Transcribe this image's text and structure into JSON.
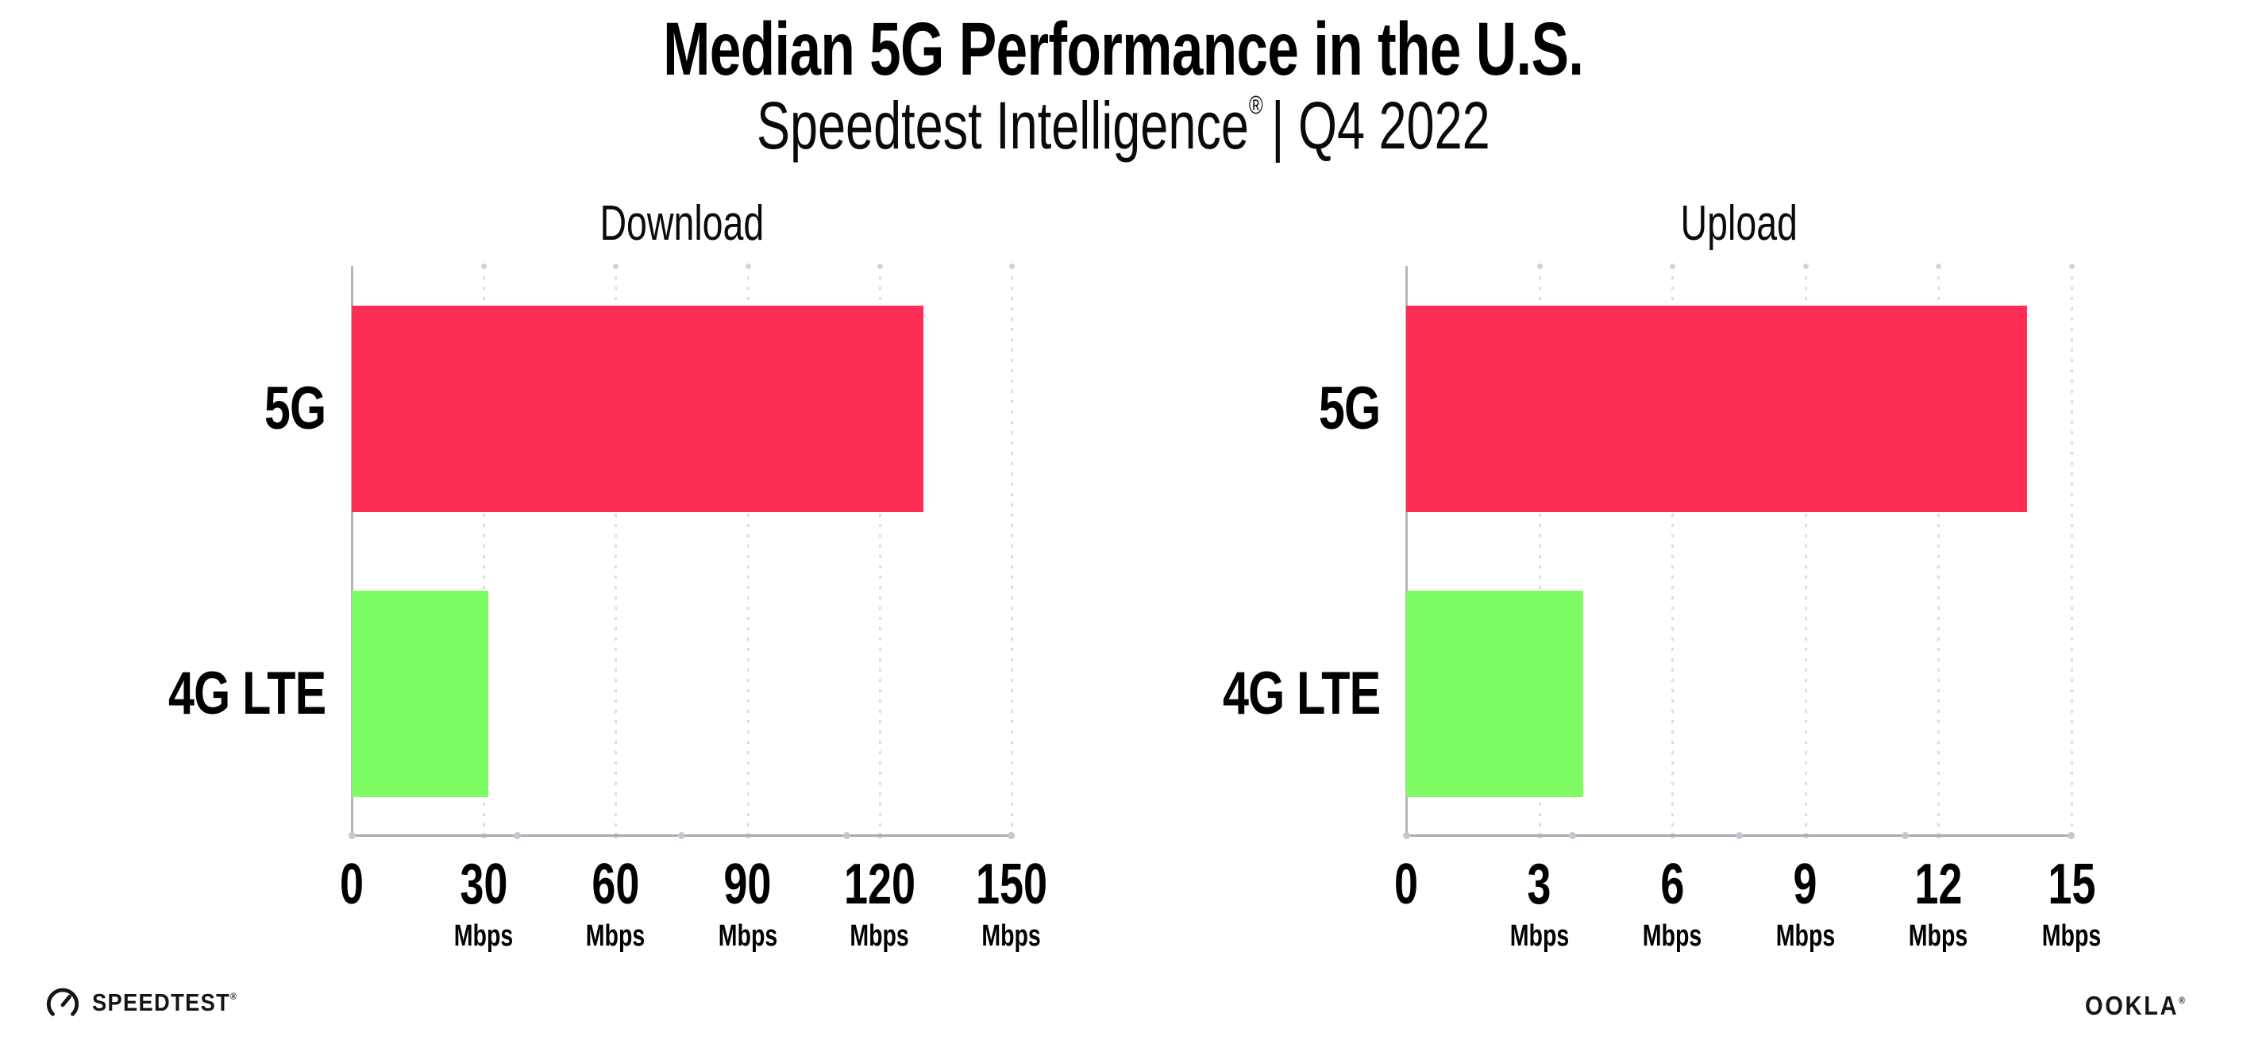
{
  "header": {
    "title": "Median 5G Performance in the U.S.",
    "subtitle_brand": "Speedtest Intelligence",
    "subtitle_reg": "®",
    "subtitle_rest": "| Q4 2022"
  },
  "footer": {
    "speedtest_label": "SPEEDTEST",
    "speedtest_reg": "®",
    "ookla_label": "OOKLA",
    "ookla_reg": "®"
  },
  "colors": {
    "bar_5g": "#FE2D55",
    "bar_4g_lte": "#7EFC63",
    "axis_line": "#A9A9B0",
    "gridline_dotted": "#DDDDE8",
    "text": "#000000",
    "background": "#FFFFFF"
  },
  "chart_data": [
    {
      "type": "bar",
      "orientation": "horizontal",
      "title": "Download",
      "categories": [
        "5G",
        "4G LTE"
      ],
      "values": [
        130,
        31
      ],
      "unit": "Mbps",
      "colors": [
        "#FE2D55",
        "#7EFC63"
      ],
      "xlim": [
        0,
        150
      ],
      "ticks": [
        "0",
        "30",
        "60",
        "90",
        "120",
        "150"
      ],
      "tick_units": [
        "",
        "Mbps",
        "Mbps",
        "Mbps",
        "Mbps",
        "Mbps"
      ],
      "grid": "vertical-dotted",
      "legend": "none"
    },
    {
      "type": "bar",
      "orientation": "horizontal",
      "title": "Upload",
      "categories": [
        "5G",
        "4G LTE"
      ],
      "values": [
        14,
        4
      ],
      "unit": "Mbps",
      "colors": [
        "#FE2D55",
        "#7EFC63"
      ],
      "xlim": [
        0,
        15
      ],
      "ticks": [
        "0",
        "3",
        "6",
        "9",
        "12",
        "15"
      ],
      "tick_units": [
        "",
        "Mbps",
        "Mbps",
        "Mbps",
        "Mbps",
        "Mbps"
      ],
      "grid": "vertical-dotted",
      "legend": "none"
    }
  ]
}
